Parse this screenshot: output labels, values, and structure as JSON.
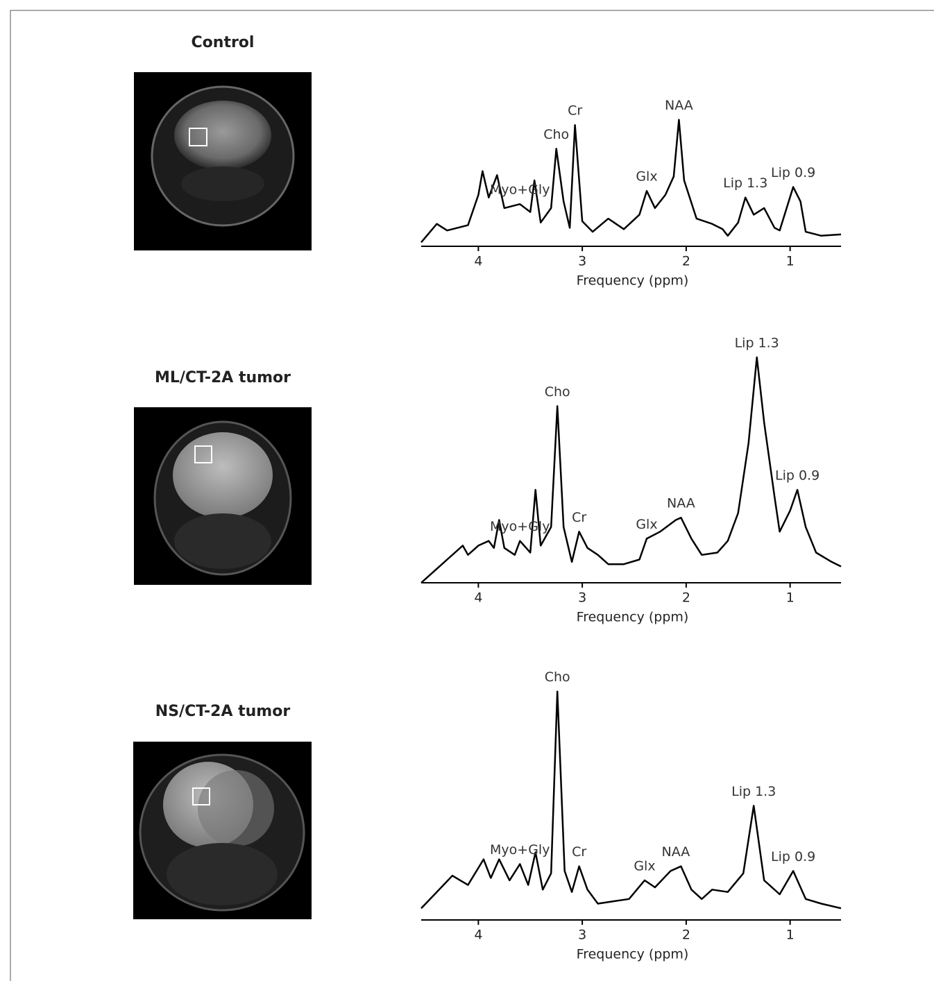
{
  "chart_data": [
    {
      "type": "line",
      "title": "Control",
      "xlabel": "Frequency (ppm)",
      "color": "#000000",
      "xlim": [
        4.55,
        0.51
      ],
      "xticks": [
        4,
        3,
        2,
        1
      ],
      "ylim": [
        0,
        100
      ],
      "x": [
        4.55,
        4.4,
        4.3,
        4.1,
        4.0,
        3.96,
        3.9,
        3.82,
        3.75,
        3.6,
        3.5,
        3.46,
        3.4,
        3.3,
        3.25,
        3.18,
        3.12,
        3.07,
        3.0,
        2.9,
        2.75,
        2.6,
        2.45,
        2.38,
        2.3,
        2.2,
        2.12,
        2.07,
        2.02,
        1.9,
        1.75,
        1.65,
        1.6,
        1.5,
        1.43,
        1.35,
        1.25,
        1.15,
        1.1,
        0.97,
        0.9,
        0.85,
        0.7,
        0.51
      ],
      "values": [
        3,
        17,
        12,
        16,
        39,
        57,
        37,
        54,
        29,
        32,
        26,
        50,
        18,
        29,
        74,
        34,
        14,
        92,
        19,
        11,
        21,
        13,
        24,
        42,
        29,
        39,
        53,
        96,
        50,
        21,
        17,
        13,
        8,
        18,
        37,
        24,
        29,
        14,
        12,
        45,
        34,
        11,
        8,
        9
      ],
      "annotations": [
        {
          "text": "Myo+Gly",
          "x": 3.6
        },
        {
          "text": "Cho",
          "x": 3.25
        },
        {
          "text": "Cr",
          "x": 3.07
        },
        {
          "text": "Glx",
          "x": 2.38
        },
        {
          "text": "NAA",
          "x": 2.07
        },
        {
          "text": "Lip 1.3",
          "x": 1.43
        },
        {
          "text": "Lip 0.9",
          "x": 0.97
        }
      ]
    },
    {
      "type": "line",
      "title": "ML/CT-2A tumor",
      "xlabel": "Frequency (ppm)",
      "color": "#000000",
      "xlim": [
        4.55,
        0.51
      ],
      "xticks": [
        4,
        3,
        2,
        1
      ],
      "ylim": [
        0,
        100
      ],
      "x": [
        4.55,
        4.45,
        4.3,
        4.15,
        4.1,
        4.0,
        3.9,
        3.85,
        3.8,
        3.75,
        3.65,
        3.6,
        3.5,
        3.45,
        3.4,
        3.3,
        3.24,
        3.18,
        3.1,
        3.03,
        2.95,
        2.85,
        2.75,
        2.6,
        2.45,
        2.38,
        2.25,
        2.1,
        2.05,
        1.95,
        1.85,
        1.7,
        1.6,
        1.5,
        1.4,
        1.32,
        1.25,
        1.15,
        1.1,
        1.0,
        0.93,
        0.85,
        0.75,
        0.6,
        0.51
      ],
      "values": [
        0,
        4,
        10,
        16,
        12,
        16,
        18,
        15,
        27,
        15,
        12,
        18,
        13,
        40,
        16,
        24,
        76,
        24,
        9,
        22,
        15,
        12,
        8,
        8,
        10,
        19,
        22,
        27,
        28,
        19,
        12,
        13,
        18,
        30,
        60,
        97,
        69,
        37,
        22,
        31,
        40,
        24,
        13,
        9,
        7
      ],
      "annotations": [
        {
          "text": "Myo+Gly",
          "x": 3.6
        },
        {
          "text": "Cho",
          "x": 3.24
        },
        {
          "text": "Cr",
          "x": 3.03
        },
        {
          "text": "Glx",
          "x": 2.38
        },
        {
          "text": "NAA",
          "x": 2.05
        },
        {
          "text": "Lip 1.3",
          "x": 1.32
        },
        {
          "text": "Lip 0.9",
          "x": 0.93
        }
      ]
    },
    {
      "type": "line",
      "title": "NS/CT-2A tumor",
      "xlabel": "Frequency (ppm)",
      "color": "#000000",
      "xlim": [
        4.55,
        0.51
      ],
      "xticks": [
        4,
        3,
        2,
        1
      ],
      "ylim": [
        0,
        100
      ],
      "x": [
        4.55,
        4.4,
        4.25,
        4.1,
        3.95,
        3.88,
        3.8,
        3.7,
        3.6,
        3.52,
        3.45,
        3.38,
        3.3,
        3.24,
        3.17,
        3.1,
        3.03,
        2.95,
        2.85,
        2.7,
        2.55,
        2.4,
        2.3,
        2.15,
        2.05,
        1.95,
        1.85,
        1.75,
        1.6,
        1.45,
        1.35,
        1.25,
        1.1,
        0.97,
        0.85,
        0.7,
        0.51
      ],
      "values": [
        5,
        12,
        19,
        15,
        26,
        18,
        26,
        17,
        24,
        15,
        29,
        13,
        20,
        98,
        21,
        12,
        23,
        13,
        7,
        8,
        9,
        17,
        14,
        21,
        23,
        13,
        9,
        13,
        12,
        20,
        49,
        17,
        11,
        21,
        9,
        7,
        5
      ],
      "annotations": [
        {
          "text": "Myo+Gly",
          "x": 3.6
        },
        {
          "text": "Cho",
          "x": 3.24
        },
        {
          "text": "Cr",
          "x": 3.03
        },
        {
          "text": "Glx",
          "x": 2.4
        },
        {
          "text": "NAA",
          "x": 2.1
        },
        {
          "text": "Lip 1.3",
          "x": 1.35
        },
        {
          "text": "Lip 0.9",
          "x": 0.97
        }
      ]
    }
  ]
}
